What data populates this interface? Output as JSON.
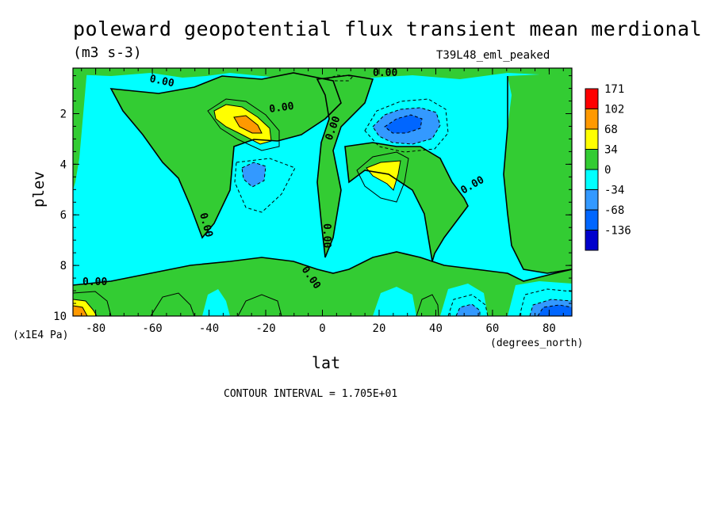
{
  "chart_data": {
    "type": "heatmap",
    "title": "poleward geopotential flux transient mean merdional",
    "units": "(m3 s-3)",
    "run_id": "T39L48_eml_peaked",
    "xlabel": "lat",
    "x_units": "(degrees_north)",
    "ylabel": "plev",
    "y_units": "(x1E4 Pa)",
    "x_ticks": [
      "-80",
      "-60",
      "-40",
      "-20",
      "0",
      "20",
      "40",
      "60",
      "80"
    ],
    "x_tick_values": [
      -80,
      -60,
      -40,
      -20,
      0,
      20,
      40,
      60,
      80
    ],
    "y_ticks": [
      "2",
      "4",
      "6",
      "8",
      "10"
    ],
    "y_tick_values": [
      2,
      4,
      6,
      8,
      10
    ],
    "xlim": [
      -88,
      88
    ],
    "ylim": [
      10,
      0.2
    ],
    "contour_interval_text": "CONTOUR INTERVAL = 1.705E+01",
    "contour_labels": [
      "0.00",
      "0.00",
      "0.00",
      "0.00",
      "0.00",
      "0.00",
      "0.00",
      "0.00",
      "0.00"
    ],
    "colorbar": {
      "levels": [
        "171",
        "102",
        "68",
        "34",
        "0",
        "-34",
        "-68",
        "-136"
      ],
      "colors": [
        "#ff0000",
        "#ff9900",
        "#ffff00",
        "#33cc33",
        "#00ffff",
        "#3399ff",
        "#0066ff",
        "#0000cc"
      ]
    },
    "features": [
      {
        "name": "positive maximum",
        "lat": -25,
        "plev": 2.4,
        "value": 102
      },
      {
        "name": "negative minimum",
        "lat": 30,
        "plev": 2.3,
        "value": -68
      },
      {
        "name": "positive maximum",
        "lat": 25,
        "plev": 4.2,
        "value": 68
      },
      {
        "name": "negative minimum",
        "lat": -25,
        "plev": 4.3,
        "value": -34
      },
      {
        "name": "positive maximum",
        "lat": -85,
        "plev": 9.8,
        "value": 102
      },
      {
        "name": "negative minimum",
        "lat": 80,
        "plev": 9.7,
        "value": -68
      }
    ]
  }
}
